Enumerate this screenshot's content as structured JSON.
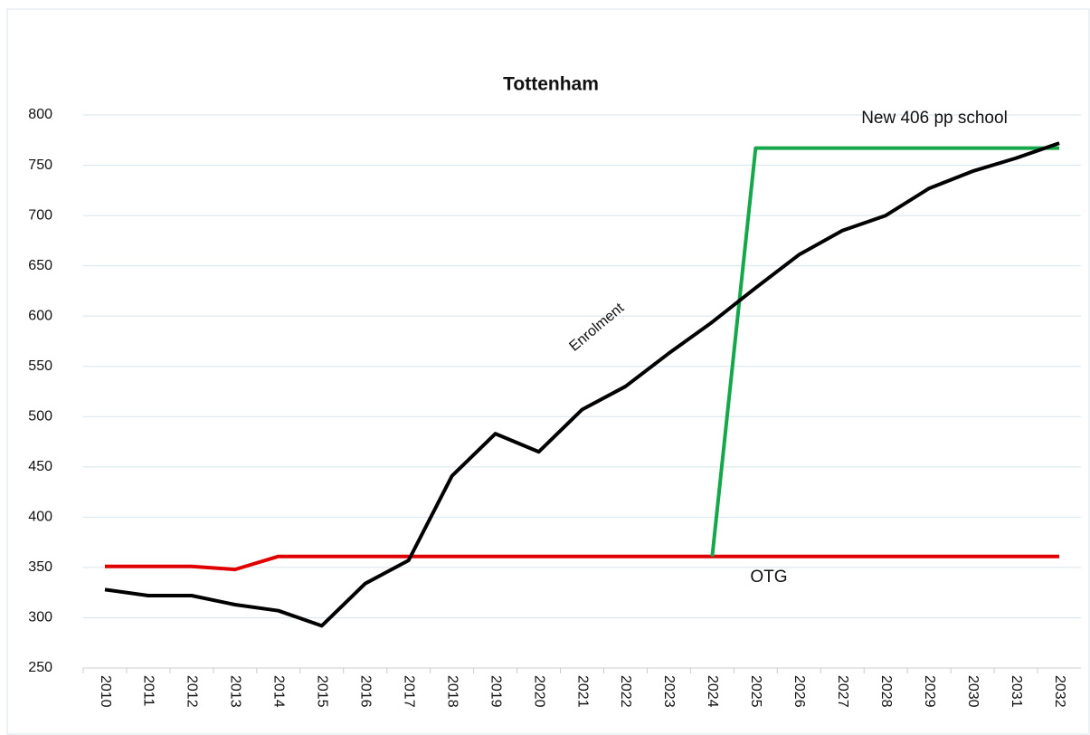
{
  "chart_data": {
    "type": "line",
    "title": "Tottenham",
    "categories": [
      "2010",
      "2011",
      "2012",
      "2013",
      "2014",
      "2015",
      "2016",
      "2017",
      "2018",
      "2019",
      "2020",
      "2021",
      "2022",
      "2023",
      "2024",
      "2025",
      "2026",
      "2027",
      "2028",
      "2029",
      "2030",
      "2031",
      "2032"
    ],
    "series": [
      {
        "name": "Enrolment",
        "color": "#000000",
        "values": [
          328,
          322,
          322,
          313,
          307,
          292,
          334,
          357,
          441,
          483,
          465,
          507,
          530,
          563,
          594,
          628,
          661,
          685,
          700,
          727,
          744,
          757,
          772
        ]
      },
      {
        "name": "OTG",
        "color": "#e00000",
        "values": [
          351,
          351,
          351,
          348,
          361,
          361,
          361,
          361,
          361,
          361,
          361,
          361,
          361,
          361,
          361,
          361,
          361,
          361,
          361,
          361,
          361,
          361,
          361
        ]
      },
      {
        "name": "New 406 pp school",
        "color": "#14a84a",
        "values": [
          null,
          null,
          null,
          null,
          null,
          null,
          null,
          null,
          null,
          null,
          null,
          null,
          null,
          null,
          361,
          767,
          767,
          767,
          767,
          767,
          767,
          767,
          767
        ]
      }
    ],
    "ylim": [
      250,
      800
    ],
    "yticks": [
      250,
      300,
      350,
      400,
      450,
      500,
      550,
      600,
      650,
      700,
      750,
      800
    ],
    "grid": true
  }
}
